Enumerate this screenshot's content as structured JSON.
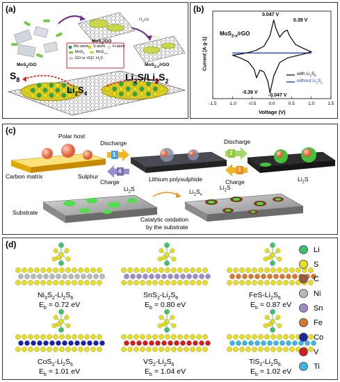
{
  "panel_a": {
    "label": "(a)",
    "mos2_go_left": "MoS",
    "mos2_go_left_sub": "2",
    "mos2_go_left_tail": "/GO",
    "mos2_go_mid": "MoS",
    "mos2_go_mid_sub": "3",
    "mos2_go_mid_tail": "/GO",
    "h2ar": "H",
    "h2ar_sub": "2",
    "h2ar_tail": "/Ar",
    "mos2x_rgo": "MoS",
    "mos2x_rgo_sub": "2-x",
    "mos2x_rgo_tail": "/rGO",
    "legend": {
      "mo": "Mo atom",
      "s": "S atom",
      "h": "H atom",
      "mos3": "MoS",
      "mos3_sub": "3",
      "mos2x": "MoS",
      "mos2x_sub": "2-x",
      "go": "GO or rGO",
      "h2s": "H",
      "h2s_sub": "2",
      "h2s_tail": "S"
    },
    "s8": "S",
    "s8_sub": "8",
    "li2s4": "Li",
    "li2s4_sub": "2",
    "li2s4_mid": "S",
    "li2s4_sub2": "4",
    "li2s": "Li",
    "li2s_sub": "2",
    "li2s_mid": "S/Li",
    "li2s_sub2": "2",
    "li2s_tail": "S",
    "li2s_sub3": "2"
  },
  "panel_b": {
    "label": "(b)",
    "title": "MoS",
    "title_sub": "2-x",
    "title_tail": "/rGO",
    "peaks": [
      "0.047 V",
      "0.39 V",
      "-0.39 V",
      "-0.047 V"
    ],
    "legend_with": "with Li",
    "legend_with_sub": "2",
    "legend_with_mid": "S",
    "legend_with_sub2": "6",
    "legend_without": "without Li",
    "legend_without_sub": "2",
    "legend_without_mid": "S",
    "legend_without_sub2": "6",
    "colors": {
      "with": "#000000",
      "without": "#1f3fd6"
    }
  },
  "chart_data": {
    "type": "line",
    "title": "MoS2-x/rGO",
    "xlabel": "Voltage (V)",
    "ylabel": "Current (A g-1)",
    "xlim": [
      -1.5,
      1.5
    ],
    "xticks": [
      "-1.5",
      "-1.0",
      "-0.5",
      "0.0",
      "0.5",
      "1.0",
      "1.5"
    ],
    "series": [
      {
        "name": "with Li2S6",
        "x": [
          -1.0,
          -0.8,
          -0.6,
          -0.45,
          -0.39,
          -0.3,
          -0.2,
          -0.1,
          -0.047,
          0.05,
          0.2,
          0.4,
          0.6,
          0.8,
          1.0,
          0.8,
          0.6,
          0.45,
          0.39,
          0.3,
          0.2,
          0.1,
          0.047,
          -0.05,
          -0.2,
          -0.4,
          -0.6,
          -0.8,
          -1.0
        ],
        "y": [
          -1.2,
          -2.6,
          -4.6,
          -8.6,
          -13.0,
          -9.0,
          -10.0,
          -15.0,
          -21.0,
          -12.0,
          -5.0,
          -2.6,
          -1.6,
          -0.6,
          0.6,
          2.4,
          4.4,
          9.0,
          12.0,
          11.0,
          8.4,
          13.0,
          17.4,
          9.0,
          3.6,
          1.4,
          0.2,
          -0.6,
          -1.2
        ]
      },
      {
        "name": "without Li2S6",
        "x": [
          -1.0,
          -0.5,
          0.0,
          0.5,
          1.0
        ],
        "y": [
          0.0,
          0.0,
          0.0,
          0.0,
          0.0
        ]
      }
    ]
  },
  "panel_c": {
    "label": "(c)",
    "polar_host": "Polar host",
    "discharge": "Discharge",
    "charge": "Charge",
    "discharge2": "Discharge",
    "charge2": "Charge",
    "carbon_matrix": "Carbon matrix",
    "sulphur": "Sulphur",
    "lithium_polysulphide": "Lithium polysulphide",
    "li2s_right": "Li",
    "li2s_right_sub": "2",
    "li2s_right_tail": "S",
    "steps": [
      "1",
      "2",
      "3",
      "4"
    ],
    "li2s_a": "Li",
    "li2s_a_sub": "2",
    "li2s_a_tail": "S",
    "substrate": "Substrate",
    "li2sx": "Li",
    "li2sx_sub": "2",
    "li2sx_mid": "S",
    "li2sx_sub2": "x",
    "li2s_b": "Li",
    "li2s_b_sub": "2",
    "li2s_b_tail": "S",
    "catalytic_line1": "Catalytic oxidation",
    "catalytic_line2": "by the substrate"
  },
  "panel_d": {
    "label": "(d)",
    "structures": [
      {
        "a": "Ni",
        "a_sub": "3",
        "b": "S",
        "b_sub": "2",
        "tail": "-Li",
        "t_sub": "2",
        "t2": "S",
        "t2_sub": "6",
        "eb": "E",
        "eb_sub": "b",
        "value": "= 0.72 eV"
      },
      {
        "a": "SnS",
        "a_sub": "2",
        "b": "",
        "b_sub": "",
        "tail": "-Li",
        "t_sub": "2",
        "t2": "S",
        "t2_sub": "6",
        "eb": "E",
        "eb_sub": "b",
        "value": "= 0.80 eV"
      },
      {
        "a": "FeS",
        "a_sub": "",
        "b": "",
        "b_sub": "",
        "tail": "-Li",
        "t_sub": "2",
        "t2": "S",
        "t2_sub": "6",
        "eb": "E",
        "eb_sub": "b",
        "value": "= 0.87 eV"
      },
      {
        "a": "CoS",
        "a_sub": "2",
        "b": "",
        "b_sub": "",
        "tail": "-Li",
        "t_sub": "2",
        "t2": "S",
        "t2_sub": "6",
        "eb": "E",
        "eb_sub": "b",
        "value": "= 1.01 eV"
      },
      {
        "a": "VS",
        "a_sub": "2",
        "b": "",
        "b_sub": "",
        "tail": "-Li",
        "t_sub": "2",
        "t2": "S",
        "t2_sub": "6",
        "eb": "E",
        "eb_sub": "b",
        "value": "= 1.04 eV"
      },
      {
        "a": "TiS",
        "a_sub": "2",
        "b": "",
        "b_sub": "",
        "tail": "-Li",
        "t_sub": "2",
        "t2": "S",
        "t2_sub": "6",
        "eb": "E",
        "eb_sub": "b",
        "value": "= 1.02 eV"
      }
    ],
    "legend": [
      {
        "label": "Li",
        "color": "#3cc36a"
      },
      {
        "label": "S",
        "color": "#e8e01a"
      },
      {
        "label": "C",
        "color": "#9b5a3c"
      },
      {
        "label": "Ni",
        "color": "#b9b9b9"
      },
      {
        "label": "Sn",
        "color": "#9f8ac7"
      },
      {
        "label": "Fe",
        "color": "#d67a2a"
      },
      {
        "label": "Co",
        "color": "#1a22a8"
      },
      {
        "label": "V",
        "color": "#d81c1c"
      },
      {
        "label": "Ti",
        "color": "#39b9e0"
      }
    ]
  }
}
